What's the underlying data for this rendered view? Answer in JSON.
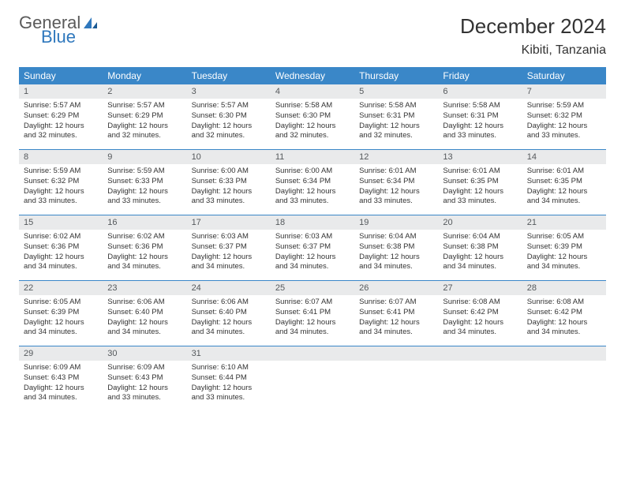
{
  "brand": {
    "part1": "General",
    "part2": "Blue"
  },
  "title": "December 2024",
  "location": "Kibiti, Tanzania",
  "colors": {
    "header_bg": "#3a87c8",
    "header_text": "#ffffff",
    "daynum_bg": "#e9eaeb",
    "daynum_text": "#55595c",
    "body_text": "#333333",
    "divider": "#3a87c8",
    "brand_blue": "#2f78bd",
    "brand_gray": "#5a5a5a",
    "background": "#ffffff"
  },
  "day_names": [
    "Sunday",
    "Monday",
    "Tuesday",
    "Wednesday",
    "Thursday",
    "Friday",
    "Saturday"
  ],
  "weeks": [
    [
      {
        "n": "1",
        "sr": "5:57 AM",
        "ss": "6:29 PM",
        "dl": "12 hours and 32 minutes."
      },
      {
        "n": "2",
        "sr": "5:57 AM",
        "ss": "6:29 PM",
        "dl": "12 hours and 32 minutes."
      },
      {
        "n": "3",
        "sr": "5:57 AM",
        "ss": "6:30 PM",
        "dl": "12 hours and 32 minutes."
      },
      {
        "n": "4",
        "sr": "5:58 AM",
        "ss": "6:30 PM",
        "dl": "12 hours and 32 minutes."
      },
      {
        "n": "5",
        "sr": "5:58 AM",
        "ss": "6:31 PM",
        "dl": "12 hours and 32 minutes."
      },
      {
        "n": "6",
        "sr": "5:58 AM",
        "ss": "6:31 PM",
        "dl": "12 hours and 33 minutes."
      },
      {
        "n": "7",
        "sr": "5:59 AM",
        "ss": "6:32 PM",
        "dl": "12 hours and 33 minutes."
      }
    ],
    [
      {
        "n": "8",
        "sr": "5:59 AM",
        "ss": "6:32 PM",
        "dl": "12 hours and 33 minutes."
      },
      {
        "n": "9",
        "sr": "5:59 AM",
        "ss": "6:33 PM",
        "dl": "12 hours and 33 minutes."
      },
      {
        "n": "10",
        "sr": "6:00 AM",
        "ss": "6:33 PM",
        "dl": "12 hours and 33 minutes."
      },
      {
        "n": "11",
        "sr": "6:00 AM",
        "ss": "6:34 PM",
        "dl": "12 hours and 33 minutes."
      },
      {
        "n": "12",
        "sr": "6:01 AM",
        "ss": "6:34 PM",
        "dl": "12 hours and 33 minutes."
      },
      {
        "n": "13",
        "sr": "6:01 AM",
        "ss": "6:35 PM",
        "dl": "12 hours and 33 minutes."
      },
      {
        "n": "14",
        "sr": "6:01 AM",
        "ss": "6:35 PM",
        "dl": "12 hours and 34 minutes."
      }
    ],
    [
      {
        "n": "15",
        "sr": "6:02 AM",
        "ss": "6:36 PM",
        "dl": "12 hours and 34 minutes."
      },
      {
        "n": "16",
        "sr": "6:02 AM",
        "ss": "6:36 PM",
        "dl": "12 hours and 34 minutes."
      },
      {
        "n": "17",
        "sr": "6:03 AM",
        "ss": "6:37 PM",
        "dl": "12 hours and 34 minutes."
      },
      {
        "n": "18",
        "sr": "6:03 AM",
        "ss": "6:37 PM",
        "dl": "12 hours and 34 minutes."
      },
      {
        "n": "19",
        "sr": "6:04 AM",
        "ss": "6:38 PM",
        "dl": "12 hours and 34 minutes."
      },
      {
        "n": "20",
        "sr": "6:04 AM",
        "ss": "6:38 PM",
        "dl": "12 hours and 34 minutes."
      },
      {
        "n": "21",
        "sr": "6:05 AM",
        "ss": "6:39 PM",
        "dl": "12 hours and 34 minutes."
      }
    ],
    [
      {
        "n": "22",
        "sr": "6:05 AM",
        "ss": "6:39 PM",
        "dl": "12 hours and 34 minutes."
      },
      {
        "n": "23",
        "sr": "6:06 AM",
        "ss": "6:40 PM",
        "dl": "12 hours and 34 minutes."
      },
      {
        "n": "24",
        "sr": "6:06 AM",
        "ss": "6:40 PM",
        "dl": "12 hours and 34 minutes."
      },
      {
        "n": "25",
        "sr": "6:07 AM",
        "ss": "6:41 PM",
        "dl": "12 hours and 34 minutes."
      },
      {
        "n": "26",
        "sr": "6:07 AM",
        "ss": "6:41 PM",
        "dl": "12 hours and 34 minutes."
      },
      {
        "n": "27",
        "sr": "6:08 AM",
        "ss": "6:42 PM",
        "dl": "12 hours and 34 minutes."
      },
      {
        "n": "28",
        "sr": "6:08 AM",
        "ss": "6:42 PM",
        "dl": "12 hours and 34 minutes."
      }
    ],
    [
      {
        "n": "29",
        "sr": "6:09 AM",
        "ss": "6:43 PM",
        "dl": "12 hours and 34 minutes."
      },
      {
        "n": "30",
        "sr": "6:09 AM",
        "ss": "6:43 PM",
        "dl": "12 hours and 33 minutes."
      },
      {
        "n": "31",
        "sr": "6:10 AM",
        "ss": "6:44 PM",
        "dl": "12 hours and 33 minutes."
      },
      null,
      null,
      null,
      null
    ]
  ],
  "labels": {
    "sunrise": "Sunrise: ",
    "sunset": "Sunset: ",
    "daylight": "Daylight: "
  }
}
